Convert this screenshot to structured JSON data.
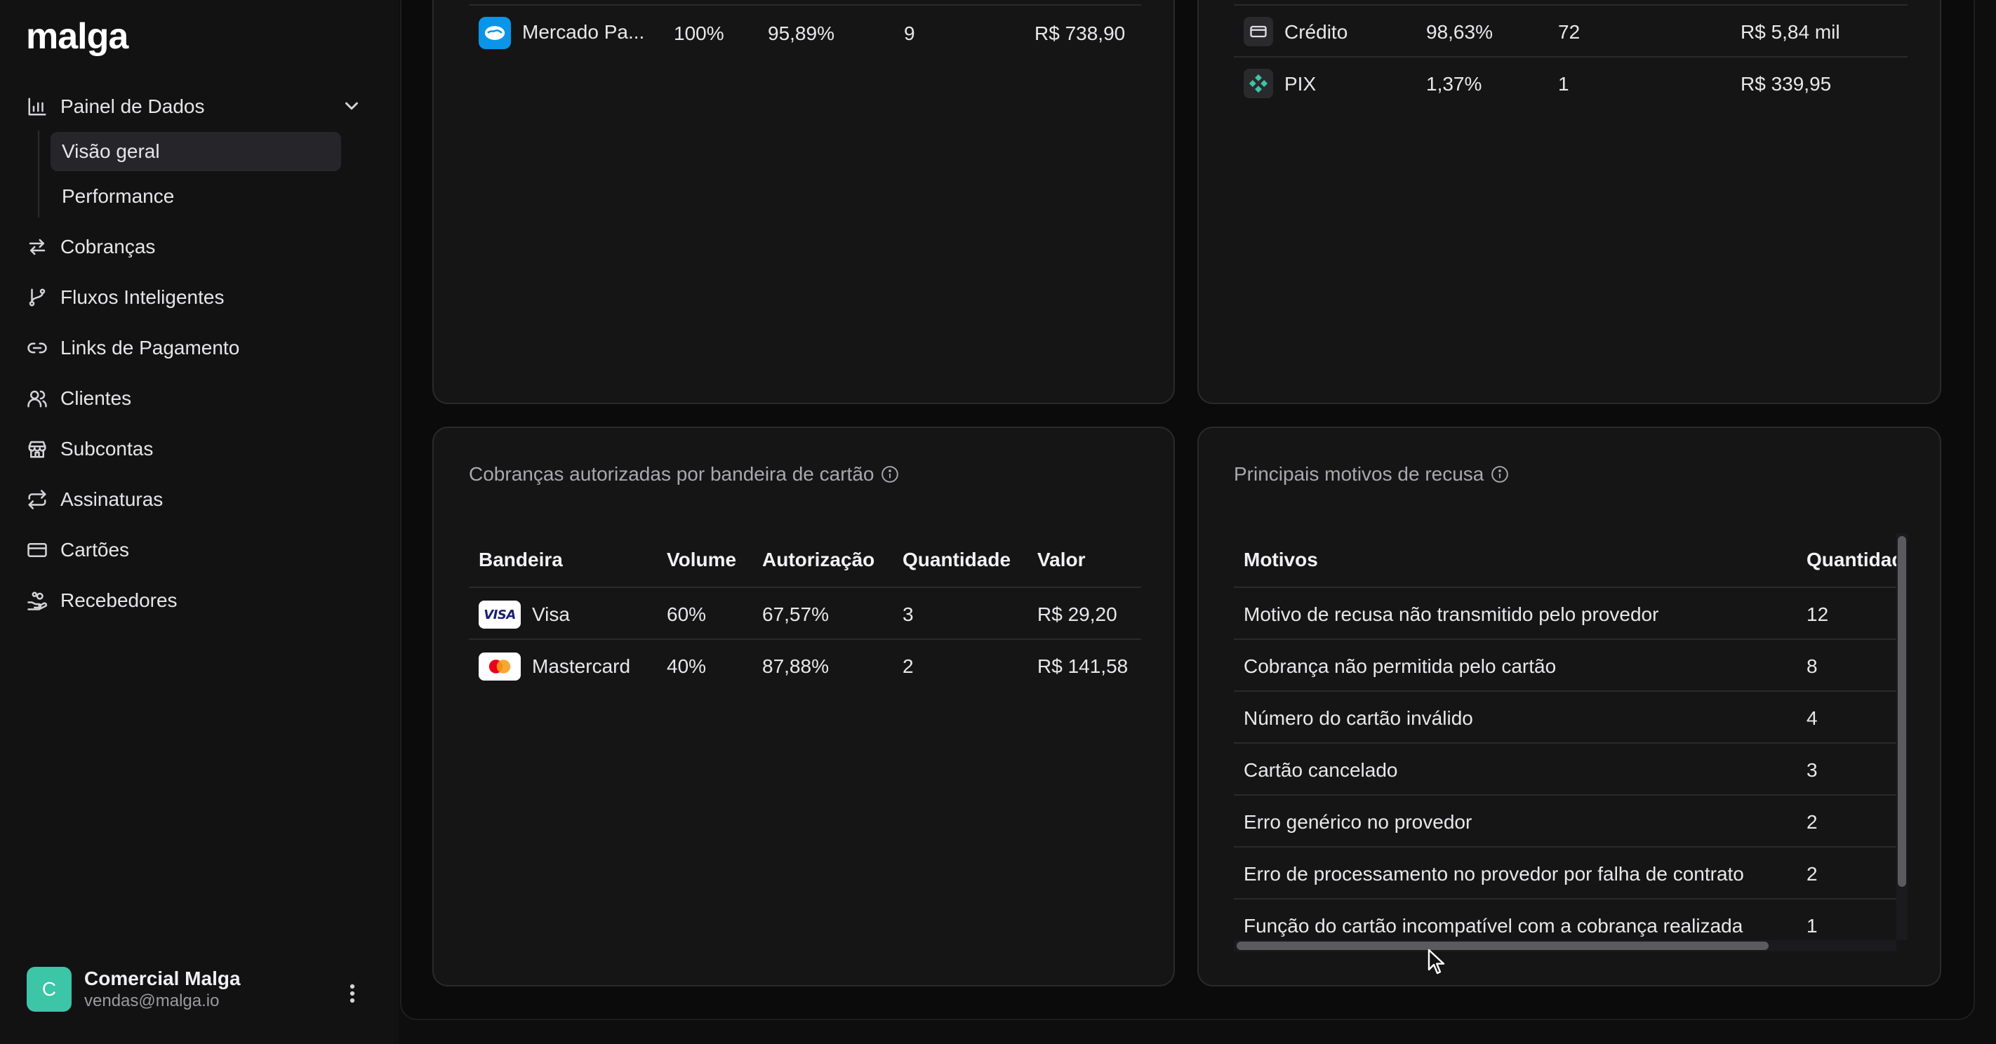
{
  "sidebar": {
    "logo": "malga",
    "sections": [
      {
        "label": "Painel de Dados",
        "icon": "bar-chart-icon"
      },
      {
        "label": "Cobranças",
        "icon": "arrows-exchange-icon"
      },
      {
        "label": "Fluxos Inteligentes",
        "icon": "git-branch-icon"
      },
      {
        "label": "Links de Pagamento",
        "icon": "link-icon"
      },
      {
        "label": "Clientes",
        "icon": "users-icon"
      },
      {
        "label": "Subcontas",
        "icon": "store-icon"
      },
      {
        "label": "Assinaturas",
        "icon": "repeat-icon"
      },
      {
        "label": "Cartões",
        "icon": "credit-card-icon"
      },
      {
        "label": "Recebedores",
        "icon": "hand-coins-icon"
      }
    ],
    "subitems": [
      {
        "label": "Visão geral",
        "active": true
      },
      {
        "label": "Performance",
        "active": false
      }
    ],
    "user": {
      "initial": "C",
      "name": "Comercial Malga",
      "email": "vendas@malga.io"
    }
  },
  "top_left_row": {
    "provider": "Mercado Pa...",
    "volume": "100%",
    "authorization": "95,89%",
    "quantity": "9",
    "value": "R$ 738,90"
  },
  "top_right_rows": [
    {
      "method": "Crédito",
      "icon": "credit-card-icon",
      "volume": "98,63%",
      "quantity": "72",
      "value": "R$ 5,84 mil"
    },
    {
      "method": "PIX",
      "icon": "pix-icon",
      "volume": "1,37%",
      "quantity": "1",
      "value": "R$ 339,95"
    }
  ],
  "brands_card": {
    "title": "Cobranças autorizadas por bandeira de cartão",
    "headers": [
      "Bandeira",
      "Volume",
      "Autorização",
      "Quantidade",
      "Valor"
    ],
    "rows": [
      {
        "brand": "Visa",
        "logo_text": "VISA",
        "volume": "60%",
        "authorization": "67,57%",
        "quantity": "3",
        "value": "R$ 29,20"
      },
      {
        "brand": "Mastercard",
        "volume": "40%",
        "authorization": "87,88%",
        "quantity": "2",
        "value": "R$ 141,58"
      }
    ]
  },
  "reasons_card": {
    "title": "Principais motivos de recusa",
    "headers": [
      "Motivos",
      "Quantidade"
    ],
    "rows": [
      {
        "reason": "Motivo de recusa não transmitido pelo provedor",
        "quantity": "12"
      },
      {
        "reason": "Cobrança não permitida pelo cartão",
        "quantity": "8"
      },
      {
        "reason": "Número do cartão inválido",
        "quantity": "4"
      },
      {
        "reason": "Cartão cancelado",
        "quantity": "3"
      },
      {
        "reason": "Erro genérico no provedor",
        "quantity": "2"
      },
      {
        "reason": "Erro de processamento no provedor por falha de contrato",
        "quantity": "2"
      },
      {
        "reason": "Função do cartão incompatível com a cobrança realizada",
        "quantity": "1"
      }
    ]
  },
  "colors": {
    "accent_avatar": "#3cc5a6",
    "background": "#0b0b0c",
    "card": "#151516"
  }
}
